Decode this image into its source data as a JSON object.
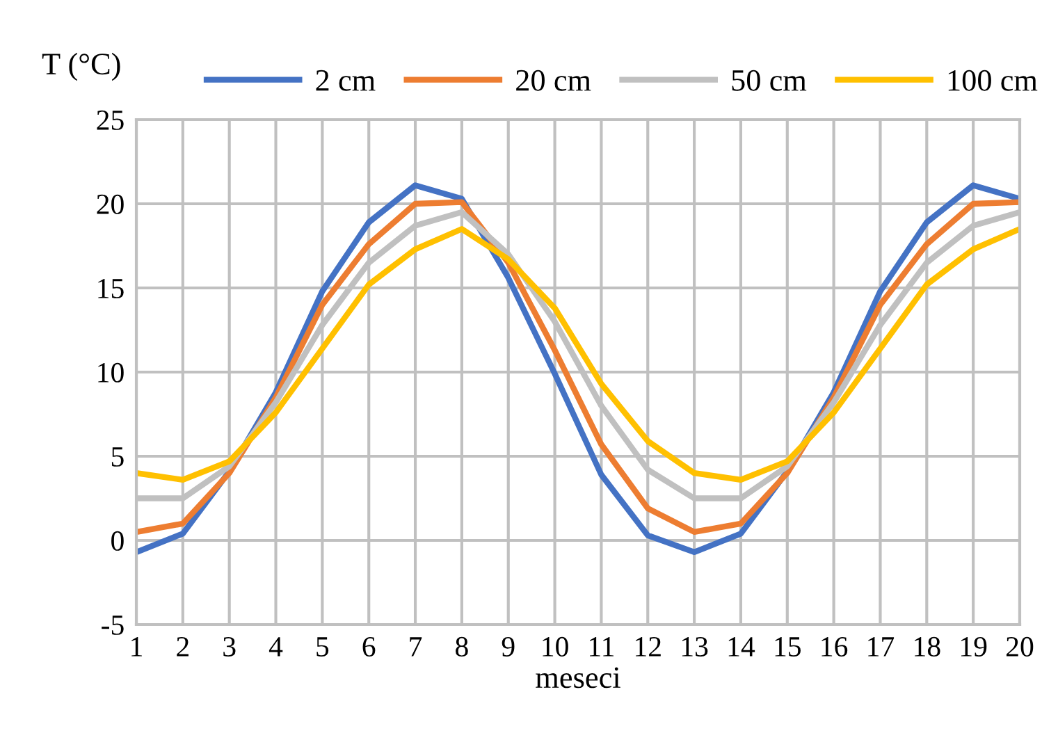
{
  "chart_data": {
    "type": "line",
    "ylabel": "T (°C)",
    "xlabel": "meseci",
    "x": [
      1,
      2,
      3,
      4,
      5,
      6,
      7,
      8,
      9,
      10,
      11,
      12,
      13,
      14,
      15,
      16,
      17,
      18,
      19,
      20
    ],
    "series": [
      {
        "name": "2 cm",
        "color": "#4472c4",
        "values": [
          -0.7,
          0.4,
          4.1,
          8.8,
          14.8,
          18.9,
          21.1,
          20.3,
          15.6,
          9.9,
          3.9,
          0.3,
          -0.7,
          0.4,
          4.1,
          8.8,
          14.8,
          18.9,
          21.1,
          20.3
        ]
      },
      {
        "name": "20 cm",
        "color": "#ed7d31",
        "values": [
          0.5,
          1.0,
          4.0,
          8.5,
          14.0,
          17.6,
          20.0,
          20.1,
          16.5,
          11.3,
          5.7,
          1.9,
          0.5,
          1.0,
          4.0,
          8.5,
          14.0,
          17.6,
          20.0,
          20.1
        ]
      },
      {
        "name": "50 cm",
        "color": "#c0c0c0",
        "values": [
          2.5,
          2.5,
          4.4,
          8.2,
          12.8,
          16.5,
          18.7,
          19.5,
          17.0,
          13.0,
          8.0,
          4.2,
          2.5,
          2.5,
          4.4,
          8.2,
          12.8,
          16.5,
          18.7,
          19.5
        ]
      },
      {
        "name": "100 cm",
        "color": "#ffc000",
        "values": [
          4.0,
          3.6,
          4.7,
          7.6,
          11.4,
          15.2,
          17.3,
          18.5,
          16.7,
          13.8,
          9.3,
          5.9,
          4.0,
          3.6,
          4.7,
          7.6,
          11.4,
          15.2,
          17.3,
          18.5
        ]
      }
    ],
    "xlim": [
      1,
      20
    ],
    "xticks": [
      1,
      2,
      3,
      4,
      5,
      6,
      7,
      8,
      9,
      10,
      11,
      12,
      13,
      14,
      15,
      16,
      17,
      18,
      19,
      20
    ],
    "ylim": [
      -5,
      25
    ],
    "yticks": [
      -5,
      0,
      5,
      10,
      15,
      20,
      25
    ],
    "grid": true,
    "legend": "top",
    "marker": "none",
    "line_style": "solid"
  }
}
